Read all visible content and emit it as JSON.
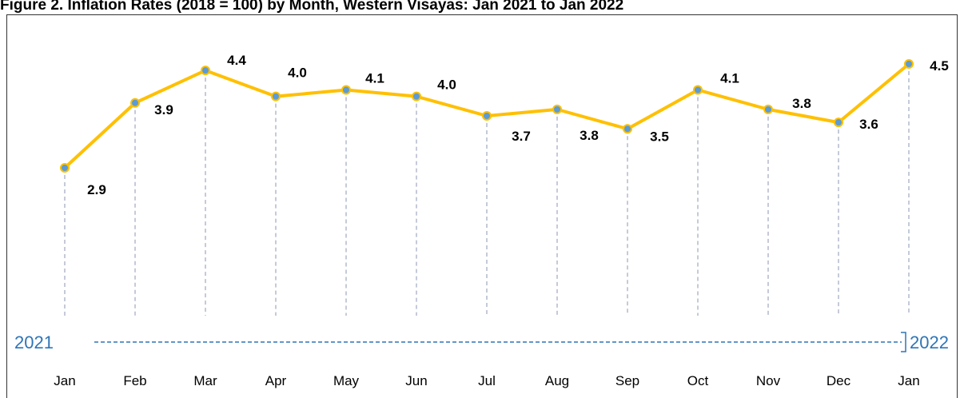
{
  "chart_data": {
    "type": "line",
    "title": "Figure 2. Inflation Rates (2018 = 100) by Month, Western Visayas: Jan 2021 to Jan 2022",
    "categories": [
      "Jan",
      "Feb",
      "Mar",
      "Apr",
      "May",
      "Jun",
      "Jul",
      "Aug",
      "Sep",
      "Oct",
      "Nov",
      "Dec",
      "Jan"
    ],
    "values": [
      2.9,
      3.9,
      4.4,
      4.0,
      4.1,
      4.0,
      3.7,
      3.8,
      3.5,
      4.1,
      3.8,
      3.6,
      4.5
    ],
    "value_labels": [
      "2.9",
      "3.9",
      "4.4",
      "4.0",
      "4.1",
      "4.0",
      "3.7",
      "3.8",
      "3.5",
      "4.1",
      "3.8",
      "3.6",
      "4.5"
    ],
    "color": "#ffc000",
    "marker_color": "#5b9bd5",
    "annotations": [
      "2021",
      "2022"
    ]
  }
}
